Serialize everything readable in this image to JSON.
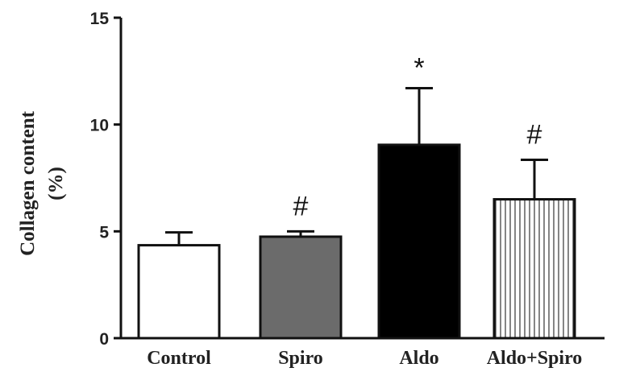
{
  "chart_data": {
    "type": "bar",
    "categories": [
      "Control",
      "Spiro",
      "Aldo",
      "Aldo+Spiro"
    ],
    "values": [
      4.35,
      4.75,
      9.05,
      6.5
    ],
    "error_upper": [
      0.6,
      0.25,
      2.65,
      1.85
    ],
    "annotations": [
      "",
      "#",
      "*",
      "#"
    ],
    "ylabel_lines": [
      "Collagen content",
      "(%)"
    ],
    "ylim": [
      0,
      15
    ],
    "yticks": [
      "0",
      "5",
      "10",
      "15"
    ],
    "ytick_values": [
      0,
      5,
      10,
      15
    ],
    "grid": false,
    "legend": "none",
    "bar_styles": [
      {
        "fill": "#ffffff",
        "pattern": "none"
      },
      {
        "fill": "#6b6b6b",
        "pattern": "none"
      },
      {
        "fill": "#000000",
        "pattern": "none"
      },
      {
        "fill": "#ffffff",
        "pattern": "vertical-stripes"
      }
    ]
  }
}
